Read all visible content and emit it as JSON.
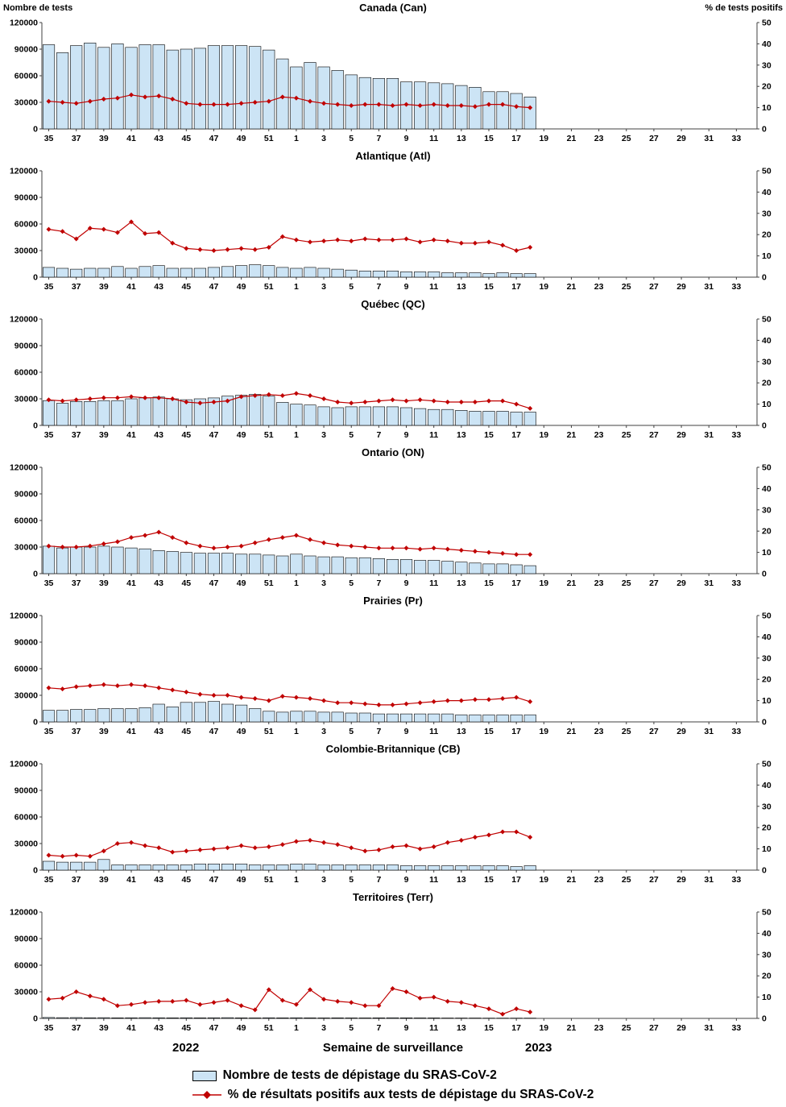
{
  "axis_left_label": "Nombre de tests",
  "axis_right_label": "% de tests positifs",
  "footer": {
    "year_left": "2022",
    "x_axis_label": "Semaine de surveillance",
    "year_right": "2023"
  },
  "legend": {
    "bars_label": "Nombre de tests de dépistage du SRAS-CoV-2",
    "line_label": "% de résultats positifs aux tests de dépistage du SRAS-CoV-2"
  },
  "colors": {
    "bar_fill": "#CCE4F5",
    "bar_border": "#000000",
    "line": "#C00000",
    "axis": "#404040"
  },
  "axes": {
    "ylim_left": [
      0,
      120000
    ],
    "ylim_right": [
      0,
      50
    ],
    "left_ticks": [
      0,
      30000,
      60000,
      90000,
      120000
    ],
    "right_ticks": [
      0,
      10,
      20,
      30,
      40,
      50
    ],
    "x_tick_labels": [
      35,
      37,
      39,
      41,
      43,
      45,
      47,
      49,
      51,
      1,
      3,
      5,
      7,
      9,
      11,
      13,
      15,
      17,
      19,
      21,
      23,
      25,
      27,
      29,
      31,
      33
    ],
    "x_slot_count": 52,
    "grid": false
  },
  "weeks": [
    35,
    36,
    37,
    38,
    39,
    40,
    41,
    42,
    43,
    44,
    45,
    46,
    47,
    48,
    49,
    50,
    51,
    52,
    1,
    2,
    3,
    4,
    5,
    6,
    7,
    8,
    9,
    10,
    11,
    12,
    13,
    14,
    15,
    16,
    17,
    18
  ],
  "chart_data": [
    {
      "type": "bar+line",
      "title": "Canada (Can)",
      "ylabel_left": "Nombre de tests",
      "ylabel_right": "% de tests positifs",
      "tests": [
        95000,
        86000,
        94000,
        97000,
        92000,
        96000,
        92000,
        95000,
        95000,
        89000,
        90000,
        91000,
        94000,
        94000,
        94000,
        93000,
        89000,
        79000,
        70000,
        75000,
        70000,
        66000,
        61000,
        58000,
        57000,
        57000,
        53000,
        53000,
        52000,
        51000,
        49000,
        47000,
        42000,
        42000,
        40000,
        36000
      ],
      "pct_positive": [
        13,
        12.5,
        12,
        13,
        14,
        14.5,
        16,
        15,
        15.5,
        14,
        12,
        11.5,
        11.5,
        11.5,
        12,
        12.5,
        13,
        15,
        14.5,
        13,
        12,
        11.5,
        11,
        11.5,
        11.5,
        11,
        11.5,
        11,
        11.5,
        11,
        11,
        10.5,
        11.5,
        11.5,
        10.5,
        10
      ]
    },
    {
      "type": "bar+line",
      "title": "Atlantique (Atl)",
      "tests": [
        11000,
        10000,
        9000,
        10000,
        10000,
        12000,
        10000,
        12000,
        13000,
        10000,
        10000,
        10000,
        11000,
        12000,
        13000,
        14000,
        13000,
        11000,
        10000,
        11000,
        10000,
        9000,
        8000,
        7000,
        7000,
        7000,
        6000,
        6000,
        6000,
        5000,
        5000,
        5000,
        4000,
        5000,
        4000,
        4000
      ],
      "pct_positive": [
        22.5,
        21.5,
        18,
        23,
        22.5,
        21,
        26,
        20.5,
        21,
        16,
        13.5,
        13,
        12.5,
        13,
        13.5,
        13,
        14,
        19,
        17.5,
        16.5,
        17,
        17.5,
        17,
        18,
        17.5,
        17.5,
        18,
        16.5,
        17.5,
        17,
        16,
        16,
        16.5,
        15,
        12.5,
        14
      ]
    },
    {
      "type": "bar+line",
      "title": "Québec (QC)",
      "tests": [
        28000,
        25000,
        27000,
        27000,
        28000,
        28000,
        30000,
        31000,
        32000,
        30000,
        29000,
        30000,
        31000,
        33000,
        34000,
        35000,
        33000,
        26000,
        24000,
        23000,
        21000,
        20000,
        21000,
        21000,
        21000,
        21000,
        20000,
        19000,
        18000,
        18000,
        17000,
        16000,
        16000,
        16000,
        15000,
        15000
      ],
      "pct_positive": [
        12,
        11.5,
        12,
        12.5,
        13,
        13,
        13.5,
        13,
        13,
        12.5,
        11,
        10.5,
        11,
        11.5,
        13.5,
        14,
        14.5,
        14,
        15,
        14,
        12.5,
        11,
        10.5,
        11,
        11.5,
        12,
        11.5,
        12,
        11.5,
        11,
        11,
        11,
        11.5,
        11.5,
        10,
        8
      ]
    },
    {
      "type": "bar+line",
      "title": "Ontario (ON)",
      "tests": [
        31000,
        29000,
        30000,
        30000,
        31000,
        30000,
        29000,
        28000,
        26000,
        25000,
        24000,
        23000,
        23000,
        23000,
        22000,
        22000,
        21000,
        20000,
        22000,
        20000,
        19000,
        19000,
        18000,
        18000,
        17000,
        16000,
        16000,
        15000,
        15000,
        14000,
        13000,
        12000,
        11000,
        11000,
        10000,
        9000
      ],
      "pct_positive": [
        13,
        12.5,
        12.5,
        13,
        14,
        15,
        17,
        18,
        19.5,
        17,
        14.5,
        13,
        12,
        12.5,
        13,
        14.5,
        16,
        17,
        18,
        16,
        14.5,
        13.5,
        13,
        12.5,
        12,
        12,
        12,
        11.5,
        12,
        11.5,
        11,
        10.5,
        10,
        9.5,
        9,
        9
      ]
    },
    {
      "type": "bar+line",
      "title": "Prairies (Pr)",
      "tests": [
        13000,
        13000,
        14000,
        14000,
        15000,
        15000,
        15000,
        16000,
        20000,
        17000,
        22000,
        22000,
        23000,
        20000,
        19000,
        15000,
        12000,
        11000,
        12000,
        12000,
        11000,
        11000,
        10000,
        10000,
        9000,
        9000,
        9000,
        9000,
        9000,
        9000,
        8000,
        8000,
        8000,
        8000,
        8000,
        8000
      ],
      "pct_positive": [
        16,
        15.5,
        16.5,
        17,
        17.5,
        17,
        17.5,
        17,
        16,
        15,
        14,
        13,
        12.5,
        12.5,
        11.5,
        11,
        10,
        12,
        11.5,
        11,
        10,
        9,
        9,
        8.5,
        8,
        8,
        8.5,
        9,
        9.5,
        10,
        10,
        10.5,
        10.5,
        11,
        11.5,
        9.5
      ]
    },
    {
      "type": "bar+line",
      "title": "Colombie-Britannique (CB)",
      "tests": [
        10000,
        9000,
        9000,
        9000,
        12000,
        6000,
        6000,
        6000,
        6000,
        6000,
        6000,
        7000,
        7000,
        7000,
        7000,
        6000,
        6000,
        6000,
        7000,
        7000,
        6000,
        6000,
        6000,
        6000,
        6000,
        6000,
        5000,
        5000,
        5000,
        5000,
        5000,
        5000,
        5000,
        5000,
        4000,
        5000
      ],
      "pct_positive": [
        7,
        6.5,
        7,
        6.5,
        9,
        12.5,
        13,
        11.5,
        10.5,
        8.5,
        9,
        9.5,
        10,
        10.5,
        11.5,
        10.5,
        11,
        12,
        13.5,
        14,
        13,
        12,
        10.5,
        9,
        9.5,
        11,
        11.5,
        10,
        11,
        13,
        14,
        15.5,
        16.5,
        18,
        18,
        15.5
      ]
    },
    {
      "type": "bar+line",
      "title": "Territoires (Terr)",
      "tests": [
        1000,
        800,
        900,
        700,
        800,
        600,
        700,
        800,
        700,
        600,
        700,
        600,
        700,
        800,
        600,
        500,
        700,
        600,
        700,
        600,
        500,
        600,
        500,
        500,
        600,
        700,
        600,
        500,
        500,
        400,
        400,
        400,
        300,
        300,
        300,
        300
      ],
      "pct_positive": [
        9,
        9.5,
        12.5,
        10.5,
        9,
        6,
        6.5,
        7.5,
        8,
        8,
        8.5,
        6.5,
        7.5,
        8.5,
        6,
        4,
        13.5,
        8.5,
        6.5,
        13.5,
        9,
        8,
        7.5,
        6,
        6,
        14,
        12.5,
        9.5,
        10,
        8,
        7.5,
        6,
        4.5,
        2,
        4.5,
        3
      ]
    }
  ]
}
